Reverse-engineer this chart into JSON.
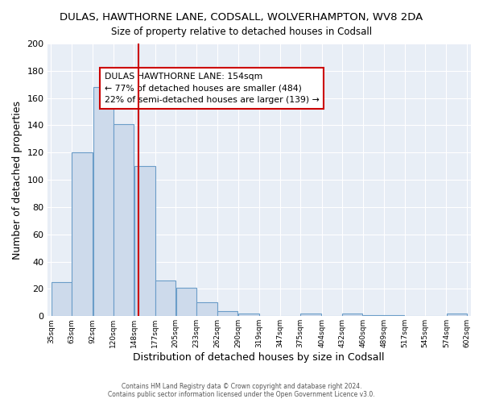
{
  "title": "DULAS, HAWTHORNE LANE, CODSALL, WOLVERHAMPTON, WV8 2DA",
  "subtitle": "Size of property relative to detached houses in Codsall",
  "xlabel": "Distribution of detached houses by size in Codsall",
  "ylabel": "Number of detached properties",
  "values": [
    25,
    120,
    168,
    141,
    110,
    26,
    21,
    10,
    4,
    2,
    0,
    0,
    2,
    0,
    2,
    1,
    1,
    0,
    0,
    2
  ],
  "bar_facecolor": "#cddaeb",
  "bar_edgecolor": "#6b9dc8",
  "property_label": "DULAS HAWTHORNE LANE: 154sqm",
  "annotation_line1": "← 77% of detached houses are smaller (484)",
  "annotation_line2": "22% of semi-detached houses are larger (139) →",
  "redline_x": 154,
  "ylim": [
    0,
    200
  ],
  "yticks": [
    0,
    20,
    40,
    60,
    80,
    100,
    120,
    140,
    160,
    180,
    200
  ],
  "background_color": "#e8eef6",
  "grid_color": "#ffffff",
  "footer1": "Contains HM Land Registry data © Crown copyright and database right 2024.",
  "footer2": "Contains public sector information licensed under the Open Government Licence v3.0.",
  "bin_edges": [
    35,
    63,
    92,
    120,
    148,
    177,
    205,
    233,
    262,
    290,
    319,
    347,
    375,
    404,
    432,
    460,
    489,
    517,
    545,
    574,
    602
  ]
}
